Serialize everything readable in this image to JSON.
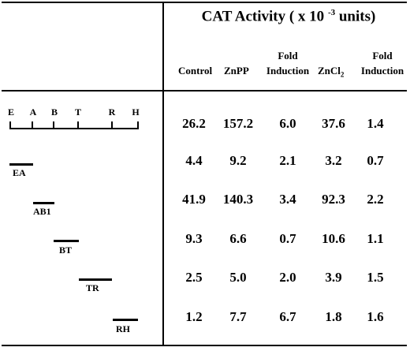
{
  "header": {
    "title_pre": "CAT Activity ( x 10 ",
    "title_sup": "-3",
    "title_post": " units)",
    "columns": {
      "control": "Control",
      "znpp": "ZnPP",
      "fold1_line1": "Fold",
      "fold1_line2": "Induction",
      "zncl_base": "ZnCl",
      "zncl_sub": "2",
      "fold2_line1": "Fold",
      "fold2_line2": "Induction"
    }
  },
  "map": {
    "sites": [
      "E",
      "A",
      "B",
      "T",
      "R",
      "H"
    ]
  },
  "rows": [
    {
      "fragment": "",
      "control": "26.2",
      "znpp": "157.2",
      "fold1": "6.0",
      "zncl2": "37.6",
      "fold2": "1.4"
    },
    {
      "fragment": "EA",
      "control": "4.4",
      "znpp": "9.2",
      "fold1": "2.1",
      "zncl2": "3.2",
      "fold2": "0.7"
    },
    {
      "fragment": "AB1",
      "control": "41.9",
      "znpp": "140.3",
      "fold1": "3.4",
      "zncl2": "92.3",
      "fold2": "2.2"
    },
    {
      "fragment": "BT",
      "control": "9.3",
      "znpp": "6.6",
      "fold1": "0.7",
      "zncl2": "10.6",
      "fold2": "1.1"
    },
    {
      "fragment": "TR",
      "control": "2.5",
      "znpp": "5.0",
      "fold1": "2.0",
      "zncl2": "3.9",
      "fold2": "1.5"
    },
    {
      "fragment": "RH",
      "control": "1.2",
      "znpp": "7.7",
      "fold1": "6.7",
      "zncl2": "1.8",
      "fold2": "1.6"
    }
  ]
}
